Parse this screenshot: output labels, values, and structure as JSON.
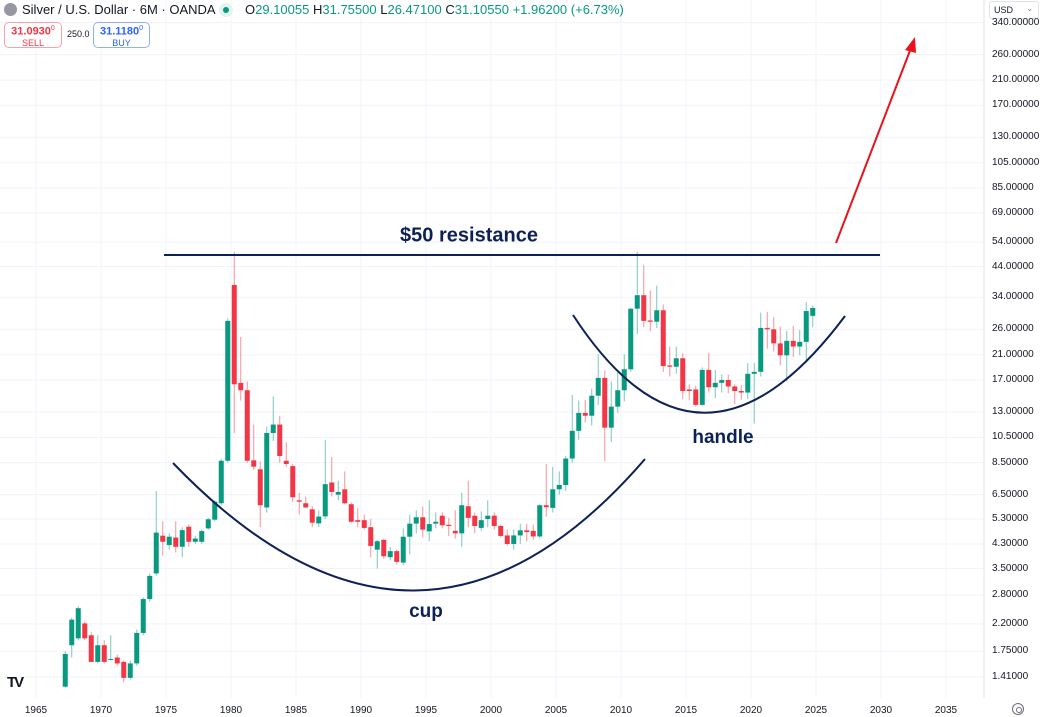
{
  "header": {
    "title": "Silver / U.S. Dollar · 6M · OANDA",
    "ohlc": {
      "o_label": "O",
      "o": "29.10055",
      "h_label": "H",
      "h": "31.75500",
      "l_label": "L",
      "l": "26.47100",
      "c_label": "C",
      "c": "31.10550",
      "change": "+1.96200 (+6.73%)"
    },
    "sell": {
      "price": "31.0930",
      "sup": "0",
      "label": "SELL"
    },
    "spread": "250.0",
    "buy": {
      "price": "31.1180",
      "sup": "0",
      "label": "BUY"
    },
    "currency": "USD"
  },
  "colors": {
    "up": "#089981",
    "down": "#f23645",
    "annotation": "#0d2157",
    "arrow": "#e8131b",
    "grid": "#f0f3fa"
  },
  "chart_data": {
    "type": "candlestick",
    "interval": "6M",
    "y_scale": "log",
    "grid": true,
    "x_ticks": [
      "1965",
      "1970",
      "1975",
      "1980",
      "1985",
      "1990",
      "1995",
      "2000",
      "2005",
      "2010",
      "2015",
      "2020",
      "2025",
      "2030",
      "2035"
    ],
    "y_ticks": [
      "340.00000",
      "260.00000",
      "210.00000",
      "170.00000",
      "130.00000",
      "105.00000",
      "85.00000",
      "69.00000",
      "54.00000",
      "44.00000",
      "34.00000",
      "26.00000",
      "21.00000",
      "17.00000",
      "13.00000",
      "10.50000",
      "8.50000",
      "6.50000",
      "5.30000",
      "4.30000",
      "3.50000",
      "2.80000",
      "2.20000",
      "1.75000",
      "1.41000"
    ],
    "start_period": 1967.0,
    "ohlc": [
      [
        1.3,
        1.75,
        1.29,
        1.71
      ],
      [
        1.84,
        2.32,
        1.66,
        2.28
      ],
      [
        1.95,
        2.55,
        1.92,
        2.51
      ],
      [
        2.21,
        2.25,
        1.92,
        1.95
      ],
      [
        2.0,
        2.05,
        1.6,
        1.6
      ],
      [
        1.6,
        2.0,
        1.58,
        1.84
      ],
      [
        1.84,
        1.92,
        1.58,
        1.6
      ],
      [
        1.63,
        2.0,
        1.62,
        1.64
      ],
      [
        1.66,
        1.7,
        1.55,
        1.58
      ],
      [
        1.6,
        1.62,
        1.35,
        1.4
      ],
      [
        1.4,
        1.62,
        1.38,
        1.58
      ],
      [
        1.58,
        2.1,
        1.55,
        2.04
      ],
      [
        2.04,
        2.75,
        2.0,
        2.71
      ],
      [
        2.71,
        3.35,
        2.65,
        3.29
      ],
      [
        3.36,
        6.7,
        3.3,
        4.73
      ],
      [
        4.61,
        5.2,
        3.9,
        4.38
      ],
      [
        4.26,
        4.7,
        4.1,
        4.57
      ],
      [
        4.54,
        5.2,
        4.0,
        4.2
      ],
      [
        4.2,
        4.95,
        3.85,
        4.83
      ],
      [
        4.97,
        5.05,
        4.2,
        4.38
      ],
      [
        4.38,
        4.6,
        4.3,
        4.5
      ],
      [
        4.38,
        4.85,
        4.3,
        4.79
      ],
      [
        4.9,
        5.35,
        4.85,
        5.29
      ],
      [
        5.27,
        6.2,
        5.2,
        6.13
      ],
      [
        6.05,
        8.8,
        5.95,
        8.64
      ],
      [
        8.64,
        28.5,
        8.5,
        27.9
      ],
      [
        37.7,
        49.8,
        10.9,
        16.4
      ],
      [
        16.6,
        24.4,
        14.3,
        15.6
      ],
      [
        15.6,
        16.8,
        8.5,
        8.64
      ],
      [
        8.67,
        11.7,
        8.0,
        8.22
      ],
      [
        8.04,
        8.6,
        4.95,
        5.95
      ],
      [
        5.84,
        11.5,
        5.6,
        10.9
      ],
      [
        10.9,
        14.8,
        10.2,
        11.7
      ],
      [
        11.7,
        12.6,
        8.5,
        8.99
      ],
      [
        8.64,
        10.1,
        8.2,
        8.41
      ],
      [
        8.26,
        8.4,
        6.1,
        6.36
      ],
      [
        6.2,
        6.6,
        5.5,
        6.13
      ],
      [
        6.05,
        6.4,
        5.8,
        5.84
      ],
      [
        5.75,
        5.9,
        4.95,
        5.14
      ],
      [
        5.11,
        5.7,
        4.95,
        5.41
      ],
      [
        5.42,
        10.3,
        5.3,
        7.1
      ],
      [
        7.2,
        8.9,
        6.4,
        6.65
      ],
      [
        6.5,
        7.3,
        6.2,
        6.65
      ],
      [
        6.8,
        7.9,
        6.0,
        6.05
      ],
      [
        6.0,
        6.1,
        5.15,
        5.18
      ],
      [
        5.25,
        5.8,
        4.95,
        5.18
      ],
      [
        5.25,
        5.5,
        4.85,
        4.92
      ],
      [
        4.95,
        5.3,
        3.85,
        4.23
      ],
      [
        4.1,
        4.45,
        3.5,
        4.4
      ],
      [
        4.45,
        4.5,
        3.8,
        3.88
      ],
      [
        3.85,
        4.2,
        3.75,
        4.05
      ],
      [
        4.05,
        4.1,
        3.62,
        3.7
      ],
      [
        3.68,
        4.9,
        3.6,
        4.57
      ],
      [
        4.57,
        5.5,
        3.94,
        5.1
      ],
      [
        5.1,
        5.7,
        4.7,
        5.38
      ],
      [
        5.38,
        5.9,
        4.55,
        4.85
      ],
      [
        4.78,
        6.2,
        4.4,
        5.08
      ],
      [
        5.1,
        5.6,
        4.9,
        5.18
      ],
      [
        5.45,
        5.6,
        4.9,
        5.03
      ],
      [
        5.05,
        5.35,
        4.6,
        5.0
      ],
      [
        4.8,
        5.7,
        4.5,
        4.7
      ],
      [
        4.7,
        6.6,
        4.2,
        5.95
      ],
      [
        5.9,
        7.3,
        4.95,
        5.35
      ],
      [
        5.45,
        5.6,
        4.7,
        5.0
      ],
      [
        4.92,
        5.65,
        4.8,
        5.25
      ],
      [
        5.3,
        6.2,
        4.95,
        5.45
      ],
      [
        5.45,
        5.6,
        4.85,
        5.0
      ],
      [
        5.0,
        5.05,
        4.55,
        4.6
      ],
      [
        4.62,
        4.85,
        4.25,
        4.3
      ],
      [
        4.3,
        4.85,
        4.1,
        4.62
      ],
      [
        4.62,
        5.1,
        4.3,
        4.82
      ],
      [
        4.82,
        5.1,
        4.4,
        4.75
      ],
      [
        4.8,
        5.05,
        4.45,
        4.58
      ],
      [
        4.58,
        6.0,
        4.5,
        5.95
      ],
      [
        5.95,
        8.4,
        5.4,
        5.85
      ],
      [
        5.82,
        8.2,
        5.6,
        6.8
      ],
      [
        6.8,
        7.9,
        6.5,
        7.05
      ],
      [
        7.05,
        9.0,
        6.7,
        8.8
      ],
      [
        8.8,
        15.0,
        8.5,
        11.1
      ],
      [
        11.1,
        14.3,
        10.3,
        12.9
      ],
      [
        12.9,
        14.4,
        11.9,
        12.6
      ],
      [
        12.6,
        15.8,
        11.6,
        14.9
      ],
      [
        14.9,
        21.1,
        13.8,
        17.3
      ],
      [
        17.3,
        18.4,
        8.6,
        11.4
      ],
      [
        11.4,
        16.8,
        10.1,
        13.6
      ],
      [
        13.6,
        18.5,
        12.9,
        15.6
      ],
      [
        15.6,
        21.1,
        14.2,
        18.6
      ],
      [
        18.6,
        31.0,
        18.2,
        30.9
      ],
      [
        30.9,
        49.8,
        25.0,
        34.6
      ],
      [
        34.6,
        44.5,
        26.5,
        27.9
      ],
      [
        28.0,
        36.0,
        25.6,
        27.7
      ],
      [
        27.7,
        37.5,
        26.3,
        30.5
      ],
      [
        30.5,
        32.0,
        18.2,
        19.1
      ],
      [
        19.2,
        22.5,
        17.5,
        19.0
      ],
      [
        19.0,
        22.5,
        17.9,
        20.4
      ],
      [
        20.4,
        21.3,
        14.5,
        15.5
      ],
      [
        15.7,
        16.4,
        14.4,
        15.5
      ],
      [
        15.7,
        16.2,
        13.6,
        13.8
      ],
      [
        13.8,
        18.9,
        13.7,
        18.5
      ],
      [
        18.5,
        21.3,
        15.3,
        16.0
      ],
      [
        16.0,
        18.5,
        14.6,
        16.6
      ],
      [
        16.6,
        17.8,
        15.3,
        17.0
      ],
      [
        17.0,
        17.8,
        15.2,
        16.1
      ],
      [
        16.1,
        16.4,
        13.9,
        15.5
      ],
      [
        15.5,
        16.3,
        14.4,
        15.3
      ],
      [
        15.3,
        19.6,
        14.5,
        17.9
      ],
      [
        17.9,
        19.6,
        11.8,
        18.2
      ],
      [
        18.2,
        29.9,
        17.5,
        26.3
      ],
      [
        26.3,
        30.1,
        22.1,
        26.0
      ],
      [
        26.0,
        28.8,
        21.6,
        23.1
      ],
      [
        23.1,
        26.6,
        19.2,
        20.9
      ],
      [
        20.9,
        25.7,
        16.8,
        23.6
      ],
      [
        23.6,
        26.8,
        20.6,
        22.5
      ],
      [
        22.5,
        25.9,
        20.9,
        23.4
      ],
      [
        23.4,
        32.6,
        19.8,
        30.3
      ],
      [
        29.10055,
        31.755,
        26.471,
        31.1055
      ]
    ],
    "annotations": {
      "resistance_label": "$50 resistance",
      "cup_label": "cup",
      "handle_label": "handle"
    }
  }
}
